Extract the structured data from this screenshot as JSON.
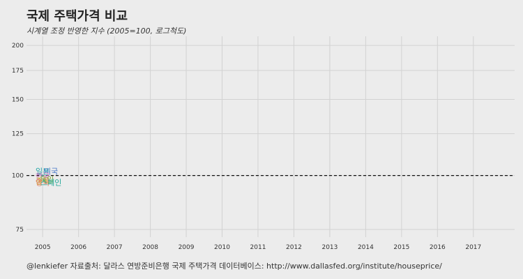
{
  "chart_data": {
    "type": "line",
    "title": "국제 주택가격 비교",
    "subtitle": "시계열 조정 반영한 지수 (2005=100, 로그척도)",
    "caption": "@lenkiefer 자료출처: 달라스 연방준비은행 국제 주택가격 데이터베이스: http://www.dallasfed.org/institute/houseprice/",
    "xlabel": "",
    "ylabel": "",
    "x_ticks": [
      "2005",
      "2006",
      "2007",
      "2008",
      "2009",
      "2010",
      "2011",
      "2012",
      "2013",
      "2014",
      "2015",
      "2016",
      "2017"
    ],
    "x_range": [
      2004.55,
      2018.15
    ],
    "y_scale": "log",
    "y_ticks": [
      75,
      100,
      125,
      150,
      175,
      200
    ],
    "y_range": [
      72,
      210
    ],
    "reference_line": {
      "y": 100,
      "style": "dashed"
    },
    "grid": true,
    "legend": "none",
    "series": [
      {
        "name": "일본",
        "x": [
          2005.0
        ],
        "y": [
          100
        ],
        "color": "#1fa3a3"
      },
      {
        "name": "미국",
        "x": [
          2005.0
        ],
        "y": [
          100
        ],
        "color": "#4878c8"
      },
      {
        "name": "한국",
        "x": [
          2005.0
        ],
        "y": [
          100
        ],
        "color": "#d16fc2"
      },
      {
        "name": "중국",
        "x": [
          2005.0
        ],
        "y": [
          100
        ],
        "color": "#c9a21e"
      },
      {
        "name": "독일",
        "x": [
          2005.0
        ],
        "y": [
          100
        ],
        "color": "#7aa83a"
      },
      {
        "name": "영국",
        "x": [
          2005.0
        ],
        "y": [
          100
        ],
        "color": "#e07a5f"
      },
      {
        "name": "스페인",
        "x": [
          2005.0
        ],
        "y": [
          100
        ],
        "color": "#22a89a"
      }
    ]
  }
}
